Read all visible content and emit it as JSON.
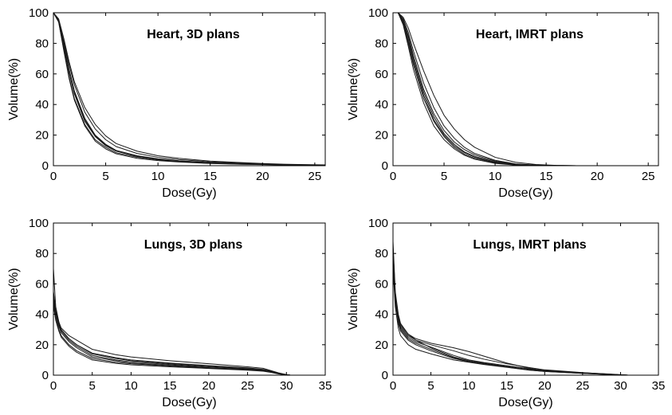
{
  "chart_data": [
    {
      "type": "line",
      "title": "Heart, 3D plans",
      "xlabel": "Dose(Gy)",
      "ylabel": "Volume(%)",
      "xlim": [
        0,
        26
      ],
      "ylim": [
        0,
        100
      ],
      "xticks": [
        0,
        5,
        10,
        15,
        20,
        25
      ],
      "yticks": [
        0,
        20,
        40,
        60,
        80,
        100
      ],
      "grid": false,
      "legend": "none",
      "x": [
        0,
        0.5,
        1,
        1.5,
        2,
        3,
        4,
        5,
        6,
        8,
        10,
        12,
        15,
        18,
        20,
        22,
        24,
        26
      ],
      "series": [
        {
          "values": [
            100,
            95,
            80,
            63,
            49,
            31,
            20,
            14,
            10,
            6.5,
            4.5,
            3.2,
            2,
            1.3,
            1,
            0.7,
            0.5,
            0.3
          ]
        },
        {
          "values": [
            100,
            95,
            78,
            61,
            47,
            29,
            19,
            13,
            9.5,
            6,
            4.2,
            3,
            1.8,
            1.2,
            0.9,
            0.6,
            0.4,
            0.3
          ]
        },
        {
          "values": [
            100,
            94,
            76,
            58,
            44,
            27,
            17,
            12,
            8.5,
            5.5,
            3.8,
            2.7,
            1.6,
            1,
            0.8,
            0.5,
            0.4,
            0.2
          ]
        },
        {
          "values": [
            100,
            95,
            81,
            66,
            53,
            35,
            24,
            17,
            12.5,
            8,
            5.5,
            4,
            2.5,
            1.6,
            1.2,
            0.8,
            0.6,
            0.4
          ]
        },
        {
          "values": [
            100,
            96,
            83,
            68,
            55,
            38,
            27,
            19.5,
            14.5,
            9.5,
            6.5,
            4.8,
            3,
            2,
            1.4,
            1,
            0.7,
            0.5
          ]
        },
        {
          "values": [
            100,
            94,
            75,
            57,
            43,
            26,
            16,
            11,
            7.8,
            4.8,
            3.3,
            2.4,
            1.4,
            0.9,
            0.7,
            0.5,
            0.3,
            0.2
          ]
        },
        {
          "values": [
            100,
            95,
            79,
            62,
            48,
            30,
            19.5,
            13.5,
            9.8,
            6.2,
            4.3,
            3.1,
            1.9,
            1.2,
            0.9,
            0.6,
            0.4,
            0.3
          ]
        }
      ]
    },
    {
      "type": "line",
      "title": "Heart, IMRT plans",
      "xlabel": "Dose(Gy)",
      "ylabel": "Volume(%)",
      "xlim": [
        0,
        26
      ],
      "ylim": [
        0,
        100
      ],
      "xticks": [
        0,
        5,
        10,
        15,
        20,
        25
      ],
      "yticks": [
        0,
        20,
        40,
        60,
        80,
        100
      ],
      "grid": false,
      "legend": "none",
      "x": [
        0,
        0.5,
        1,
        1.5,
        2,
        3,
        4,
        5,
        6,
        7,
        8,
        10,
        12,
        14,
        16,
        18,
        20
      ],
      "series": [
        {
          "values": [
            100,
            100,
            95,
            84,
            70,
            48,
            32,
            21,
            14,
            9,
            6,
            2.5,
            0.8,
            0.2,
            0,
            0,
            0
          ]
        },
        {
          "values": [
            100,
            100,
            93,
            80,
            66,
            44,
            29,
            19,
            12,
            7.5,
            4.8,
            1.8,
            0.5,
            0.1,
            0,
            0,
            0
          ]
        },
        {
          "values": [
            100,
            100,
            96,
            87,
            75,
            54,
            38,
            26,
            18,
            12,
            8,
            3.5,
            1.2,
            0.4,
            0.1,
            0,
            0
          ]
        },
        {
          "values": [
            100,
            100,
            97,
            90,
            80,
            62,
            46,
            33,
            24,
            17,
            12,
            5.5,
            2.2,
            0.8,
            0.2,
            0,
            0
          ]
        },
        {
          "values": [
            100,
            100,
            94,
            82,
            68,
            46,
            30,
            20,
            13,
            8.5,
            5.5,
            2.2,
            0.7,
            0.2,
            0,
            0,
            0
          ]
        },
        {
          "values": [
            100,
            100,
            92,
            78,
            63,
            41,
            26,
            17,
            11,
            6.8,
            4.2,
            1.5,
            0.4,
            0.1,
            0,
            0,
            0
          ]
        },
        {
          "values": [
            100,
            100,
            95,
            85,
            72,
            50,
            34,
            23,
            15.5,
            10.5,
            7,
            3,
            1,
            0.3,
            0.1,
            0,
            0
          ]
        }
      ]
    },
    {
      "type": "line",
      "title": "Lungs, 3D plans",
      "xlabel": "Dose(Gy)",
      "ylabel": "Volume(%)",
      "xlim": [
        0,
        35
      ],
      "ylim": [
        0,
        100
      ],
      "xticks": [
        0,
        5,
        10,
        15,
        20,
        25,
        30,
        35
      ],
      "yticks": [
        0,
        20,
        40,
        60,
        80,
        100
      ],
      "grid": false,
      "legend": "none",
      "x": [
        0,
        0.3,
        0.7,
        1,
        2,
        3,
        5,
        8,
        10,
        15,
        20,
        25,
        27,
        28,
        29,
        30,
        30.5
      ],
      "series": [
        {
          "values": [
            70,
            45,
            35,
            30,
            24,
            20,
            14,
            11,
            9.5,
            7.5,
            6,
            4.5,
            3.5,
            2.5,
            1.2,
            0.3,
            0
          ]
        },
        {
          "values": [
            55,
            43,
            35,
            31,
            26,
            23,
            17,
            13.5,
            12,
            9.5,
            7.5,
            5.5,
            4.5,
            3,
            1.5,
            0.4,
            0
          ]
        },
        {
          "values": [
            50,
            40,
            32,
            28,
            22,
            18,
            12,
            9.5,
            8,
            6.5,
            5,
            3.8,
            3,
            2.2,
            1,
            0.2,
            0
          ]
        },
        {
          "values": [
            48,
            38,
            30,
            26,
            20,
            16,
            11,
            8.5,
            7.5,
            6,
            4.8,
            3.6,
            2.8,
            2,
            0.9,
            0.2,
            0
          ]
        },
        {
          "values": [
            52,
            41,
            33,
            29,
            23,
            19,
            13,
            10,
            8.8,
            7,
            5.5,
            4.2,
            3.3,
            2.3,
            1.1,
            0.3,
            0
          ]
        },
        {
          "values": [
            46,
            36,
            29,
            25,
            19,
            15,
            10,
            7.8,
            6.8,
            5.5,
            4.4,
            3.3,
            2.6,
            1.8,
            0.8,
            0.1,
            0
          ]
        },
        {
          "values": [
            54,
            42,
            34,
            30,
            24,
            20,
            14.5,
            11.5,
            10,
            8,
            6.3,
            4.8,
            3.8,
            2.7,
            1.3,
            0.3,
            0
          ]
        }
      ]
    },
    {
      "type": "line",
      "title": "Lungs, IMRT plans",
      "xlabel": "Dose(Gy)",
      "ylabel": "Volume(%)",
      "xlim": [
        0,
        35
      ],
      "ylim": [
        0,
        100
      ],
      "xticks": [
        0,
        5,
        10,
        15,
        20,
        25,
        30,
        35
      ],
      "yticks": [
        0,
        20,
        40,
        60,
        80,
        100
      ],
      "grid": false,
      "legend": "none",
      "x": [
        0,
        0.3,
        0.7,
        1,
        2,
        3,
        5,
        8,
        10,
        12,
        15,
        18,
        20,
        25,
        28,
        30,
        31
      ],
      "series": [
        {
          "values": [
            88,
            55,
            40,
            34,
            27,
            23,
            18,
            12,
            9.5,
            8,
            6,
            4,
            3,
            1.5,
            0.8,
            0.2,
            0
          ]
        },
        {
          "values": [
            80,
            52,
            38,
            32,
            26,
            23,
            20,
            16,
            13,
            10.5,
            7.5,
            5,
            3.5,
            1.7,
            0.8,
            0.2,
            0
          ]
        },
        {
          "values": [
            75,
            50,
            36,
            30,
            24,
            21,
            17,
            11.5,
            9,
            7.5,
            5.5,
            3.5,
            2.6,
            1.3,
            0.6,
            0.1,
            0
          ]
        },
        {
          "values": [
            70,
            45,
            31,
            26,
            20,
            17,
            14,
            10,
            8.5,
            7,
            5.2,
            3.3,
            2.5,
            1.2,
            0.6,
            0.1,
            0
          ]
        },
        {
          "values": [
            78,
            53,
            39,
            33,
            27,
            24,
            21,
            18,
            15.5,
            12.5,
            8,
            4.5,
            3,
            1.5,
            0.7,
            0.2,
            0
          ]
        },
        {
          "values": [
            72,
            48,
            34,
            29,
            23,
            20,
            16,
            11,
            8.8,
            7.2,
            5.3,
            3.4,
            2.4,
            1.2,
            0.5,
            0.1,
            0
          ]
        },
        {
          "values": [
            84,
            54,
            37,
            31,
            25,
            22,
            18.5,
            13,
            10,
            8.3,
            6.2,
            4.2,
            3.1,
            1.6,
            0.9,
            0.3,
            0
          ]
        }
      ]
    }
  ]
}
